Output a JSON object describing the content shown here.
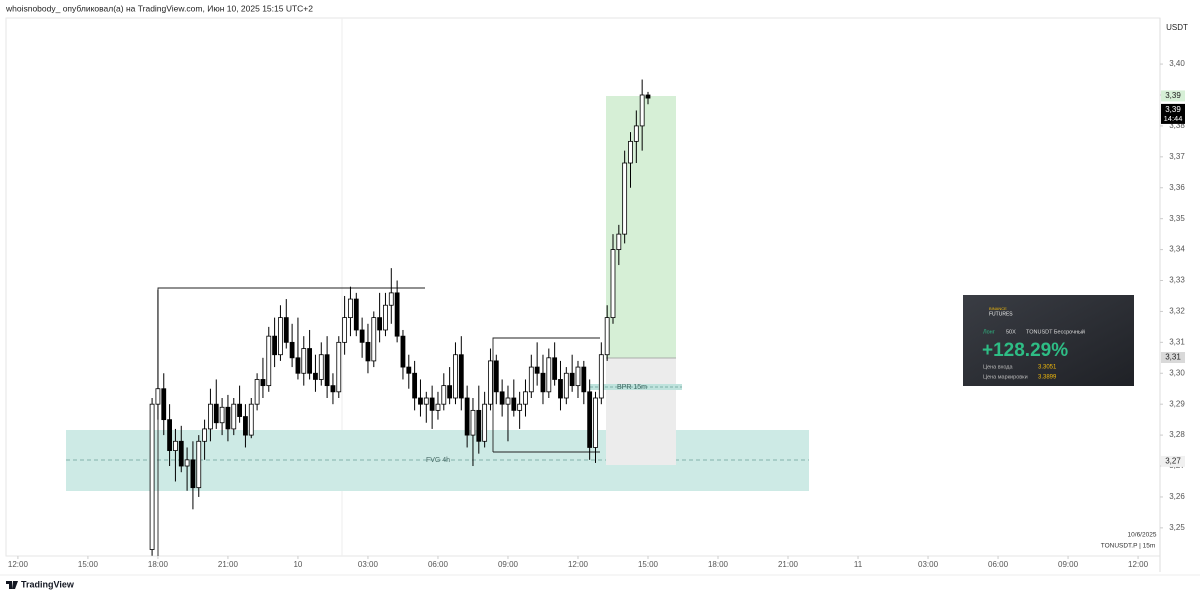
{
  "header": {
    "byline": "whoisnobody_ опубликовал(а) на TradingView.com, Июн 10, 2025 15:15 UTC+2"
  },
  "chart_data": {
    "type": "candlestick",
    "y_unit": "USDT",
    "up_color": "#ffffff",
    "down_color": "#000000",
    "wick_color": "#000000",
    "grid": false,
    "x": [
      5.75,
      6,
      6.25,
      6.5,
      6.75,
      7,
      7.25,
      7.5,
      7.75,
      8,
      8.25,
      8.5,
      8.75,
      9,
      9.25,
      9.5,
      9.75,
      10,
      10.25,
      10.5,
      10.75,
      11,
      11.25,
      11.5,
      11.75,
      12,
      12.25,
      12.5,
      12.75,
      13,
      13.25,
      13.5,
      13.75,
      14,
      14.25,
      14.5,
      14.75,
      15,
      15.25,
      15.5,
      15.75,
      16,
      16.25,
      16.5,
      16.75,
      17,
      17.25,
      17.5,
      17.75,
      18,
      18.25,
      18.5,
      18.75,
      19,
      19.25,
      19.5,
      19.75,
      20,
      20.25,
      20.5,
      20.75,
      21,
      21.25,
      21.5,
      21.75,
      22,
      22.25,
      22.5,
      22.75,
      23,
      23.25,
      23.5,
      23.75,
      24,
      24.25,
      24.5,
      24.75,
      25,
      25.25,
      25.5,
      25.75,
      26,
      26.25,
      26.5,
      26.75,
      27
    ],
    "ohlc": [
      [
        3.243,
        3.292,
        3.241,
        3.29
      ],
      [
        3.29,
        3.327,
        3.285,
        3.295
      ],
      [
        3.295,
        3.3,
        3.28,
        3.285
      ],
      [
        3.285,
        3.29,
        3.27,
        3.275
      ],
      [
        3.275,
        3.282,
        3.265,
        3.278
      ],
      [
        3.278,
        3.283,
        3.268,
        3.27
      ],
      [
        3.27,
        3.276,
        3.262,
        3.272
      ],
      [
        3.272,
        3.278,
        3.256,
        3.263
      ],
      [
        3.263,
        3.28,
        3.26,
        3.278
      ],
      [
        3.278,
        3.285,
        3.272,
        3.282
      ],
      [
        3.282,
        3.295,
        3.278,
        3.29
      ],
      [
        3.29,
        3.298,
        3.282,
        3.284
      ],
      [
        3.284,
        3.292,
        3.28,
        3.289
      ],
      [
        3.289,
        3.293,
        3.278,
        3.282
      ],
      [
        3.282,
        3.292,
        3.28,
        3.29
      ],
      [
        3.29,
        3.296,
        3.284,
        3.286
      ],
      [
        3.286,
        3.29,
        3.276,
        3.28
      ],
      [
        3.28,
        3.292,
        3.279,
        3.29
      ],
      [
        3.29,
        3.3,
        3.288,
        3.298
      ],
      [
        3.298,
        3.305,
        3.292,
        3.296
      ],
      [
        3.296,
        3.315,
        3.294,
        3.312
      ],
      [
        3.312,
        3.318,
        3.302,
        3.306
      ],
      [
        3.306,
        3.322,
        3.304,
        3.318
      ],
      [
        3.318,
        3.324,
        3.308,
        3.31
      ],
      [
        3.31,
        3.316,
        3.302,
        3.305
      ],
      [
        3.305,
        3.318,
        3.298,
        3.3
      ],
      [
        3.3,
        3.312,
        3.296,
        3.308
      ],
      [
        3.308,
        3.314,
        3.298,
        3.3
      ],
      [
        3.3,
        3.306,
        3.294,
        3.298
      ],
      [
        3.298,
        3.31,
        3.296,
        3.306
      ],
      [
        3.306,
        3.312,
        3.292,
        3.296
      ],
      [
        3.296,
        3.3,
        3.29,
        3.294
      ],
      [
        3.294,
        3.312,
        3.292,
        3.31
      ],
      [
        3.31,
        3.325,
        3.306,
        3.318
      ],
      [
        3.318,
        3.328,
        3.312,
        3.324
      ],
      [
        3.324,
        3.326,
        3.312,
        3.314
      ],
      [
        3.314,
        3.318,
        3.305,
        3.31
      ],
      [
        3.31,
        3.316,
        3.3,
        3.304
      ],
      [
        3.304,
        3.32,
        3.302,
        3.318
      ],
      [
        3.318,
        3.326,
        3.31,
        3.314
      ],
      [
        3.314,
        3.326,
        3.312,
        3.322
      ],
      [
        3.322,
        3.334,
        3.316,
        3.326
      ],
      [
        3.326,
        3.33,
        3.31,
        3.312
      ],
      [
        3.312,
        3.314,
        3.298,
        3.302
      ],
      [
        3.302,
        3.306,
        3.295,
        3.3
      ],
      [
        3.3,
        3.304,
        3.288,
        3.292
      ],
      [
        3.292,
        3.298,
        3.286,
        3.29
      ],
      [
        3.29,
        3.294,
        3.284,
        3.292
      ],
      [
        3.292,
        3.296,
        3.282,
        3.288
      ],
      [
        3.288,
        3.294,
        3.285,
        3.29
      ],
      [
        3.29,
        3.3,
        3.288,
        3.296
      ],
      [
        3.296,
        3.302,
        3.29,
        3.292
      ],
      [
        3.292,
        3.31,
        3.29,
        3.306
      ],
      [
        3.306,
        3.312,
        3.288,
        3.292
      ],
      [
        3.292,
        3.296,
        3.276,
        3.28
      ],
      [
        3.28,
        3.292,
        3.27,
        3.288
      ],
      [
        3.288,
        3.296,
        3.274,
        3.278
      ],
      [
        3.278,
        3.294,
        3.276,
        3.29
      ],
      [
        3.29,
        3.308,
        3.288,
        3.304
      ],
      [
        3.304,
        3.306,
        3.29,
        3.294
      ],
      [
        3.294,
        3.298,
        3.286,
        3.29
      ],
      [
        3.29,
        3.296,
        3.278,
        3.292
      ],
      [
        3.292,
        3.298,
        3.286,
        3.288
      ],
      [
        3.288,
        3.294,
        3.282,
        3.29
      ],
      [
        3.29,
        3.298,
        3.286,
        3.294
      ],
      [
        3.294,
        3.306,
        3.292,
        3.302
      ],
      [
        3.302,
        3.31,
        3.296,
        3.3
      ],
      [
        3.3,
        3.306,
        3.29,
        3.294
      ],
      [
        3.294,
        3.308,
        3.292,
        3.305
      ],
      [
        3.305,
        3.31,
        3.296,
        3.298
      ],
      [
        3.298,
        3.304,
        3.288,
        3.292
      ],
      [
        3.292,
        3.302,
        3.29,
        3.3
      ],
      [
        3.3,
        3.306,
        3.294,
        3.296
      ],
      [
        3.296,
        3.304,
        3.292,
        3.302
      ],
      [
        3.302,
        3.304,
        3.29,
        3.294
      ],
      [
        3.294,
        3.298,
        3.272,
        3.276
      ],
      [
        3.276,
        3.294,
        3.271,
        3.292
      ],
      [
        3.292,
        3.31,
        3.29,
        3.306
      ],
      [
        3.306,
        3.322,
        3.304,
        3.318
      ],
      [
        3.318,
        3.345,
        3.316,
        3.34
      ],
      [
        3.34,
        3.348,
        3.335,
        3.345
      ],
      [
        3.345,
        3.372,
        3.342,
        3.368
      ],
      [
        3.368,
        3.378,
        3.36,
        3.375
      ],
      [
        3.375,
        3.385,
        3.368,
        3.38
      ],
      [
        3.38,
        3.395,
        3.372,
        3.39
      ],
      [
        3.39,
        3.391,
        3.387,
        3.389
      ]
    ],
    "xlim": [
      -0.51,
      48.94
    ],
    "xticks": [
      {
        "value": 0,
        "label": "12:00"
      },
      {
        "value": 3,
        "label": "15:00"
      },
      {
        "value": 6,
        "label": "18:00"
      },
      {
        "value": 9,
        "label": "21:00"
      },
      {
        "value": 12,
        "label": "10"
      },
      {
        "value": 15,
        "label": "03:00"
      },
      {
        "value": 18,
        "label": "06:00"
      },
      {
        "value": 21,
        "label": "09:00"
      },
      {
        "value": 24,
        "label": "12:00"
      },
      {
        "value": 27,
        "label": "15:00"
      },
      {
        "value": 30,
        "label": "18:00"
      },
      {
        "value": 33,
        "label": "21:00"
      },
      {
        "value": 36,
        "label": "11"
      },
      {
        "value": 39,
        "label": "03:00"
      },
      {
        "value": 42,
        "label": "06:00"
      },
      {
        "value": 45,
        "label": "09:00"
      },
      {
        "value": 48,
        "label": "12:00"
      }
    ],
    "ylim": [
      3.2409,
      3.4149
    ],
    "yticks": [
      {
        "value": 3.25,
        "label": "3,25"
      },
      {
        "value": 3.26,
        "label": "3,26"
      },
      {
        "value": 3.27,
        "label": "3,27"
      },
      {
        "value": 3.28,
        "label": "3,28"
      },
      {
        "value": 3.29,
        "label": "3,29"
      },
      {
        "value": 3.3,
        "label": "3,30"
      },
      {
        "value": 3.31,
        "label": "3,31"
      },
      {
        "value": 3.32,
        "label": "3,32"
      },
      {
        "value": 3.33,
        "label": "3,33"
      },
      {
        "value": 3.34,
        "label": "3,34"
      },
      {
        "value": 3.35,
        "label": "3,35"
      },
      {
        "value": 3.36,
        "label": "3,36"
      },
      {
        "value": 3.37,
        "label": "3,37"
      },
      {
        "value": 3.38,
        "label": "3,38"
      },
      {
        "value": 3.39,
        "label": "3,39"
      },
      {
        "value": 3.4,
        "label": "3,40"
      }
    ],
    "price_tags": [
      {
        "value": 3.3897,
        "label": "3,39",
        "color": "#d6efd6"
      },
      {
        "value": 3.389,
        "label": "3,39",
        "time": "14:44",
        "color": "#000000"
      },
      {
        "value": 3.3051,
        "label": "3,31",
        "color": "#d9d9d9"
      },
      {
        "value": 3.2715,
        "label": "3,27",
        "color": "#f0f0f0"
      }
    ],
    "annotations": {
      "fvg": "FVG 4h",
      "bpr": "BPR 15m"
    }
  },
  "watermark": {
    "date": "10/6/2025",
    "symbol": "TONUSDT.P | 15m"
  },
  "card": {
    "brand": "BINANCE",
    "brand_sub": "FUTURES",
    "side": "Лонг",
    "leverage": "50X",
    "symbol": "TONUSDT Бессрочный",
    "pnl": "+128.29%",
    "entry_label": "Цена входа",
    "entry": "3.3051",
    "mark_label": "Цена маркировки",
    "mark": "3.3899"
  },
  "footer": {
    "logo": "TradingView"
  }
}
